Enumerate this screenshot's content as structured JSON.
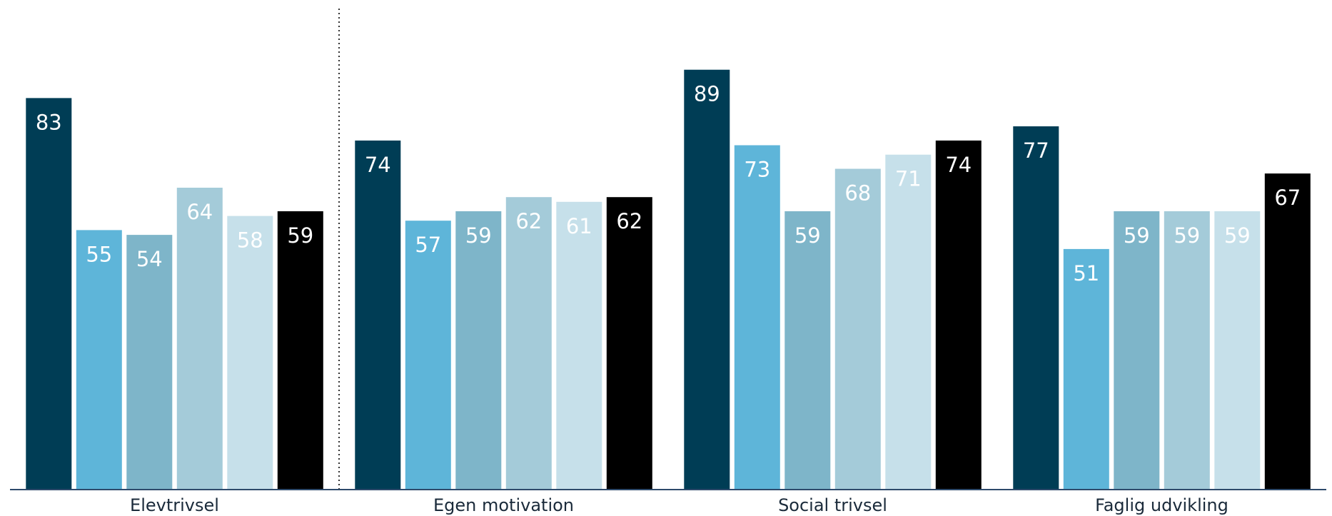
{
  "chart_data": {
    "type": "bar",
    "title": "",
    "xlabel": "",
    "ylabel": "",
    "ylim": [
      0,
      100
    ],
    "grid": false,
    "categories": [
      "Elevtrivsel",
      "Egen motivation",
      "Social trivsel",
      "Faglig udvikling"
    ],
    "series": [
      {
        "color": "#003d55",
        "label_color": "#ffffff",
        "values": [
          83,
          74,
          89,
          77
        ]
      },
      {
        "color": "#5eb5d9",
        "label_color": "#ffffff",
        "values": [
          55,
          57,
          73,
          51
        ]
      },
      {
        "color": "#7eb5c9",
        "label_color": "#ffffff",
        "values": [
          54,
          59,
          59,
          59
        ]
      },
      {
        "color": "#a4cbd9",
        "label_color": "#ffffff",
        "values": [
          64,
          62,
          68,
          59
        ]
      },
      {
        "color": "#c6e0ea",
        "label_color": "#ffffff",
        "values": [
          58,
          61,
          71,
          59
        ]
      },
      {
        "color": "#000000",
        "label_color": "#ffffff",
        "values": [
          59,
          62,
          74,
          67
        ]
      }
    ],
    "separator_after_category": 0,
    "axis_color": "#2e4a6b"
  }
}
